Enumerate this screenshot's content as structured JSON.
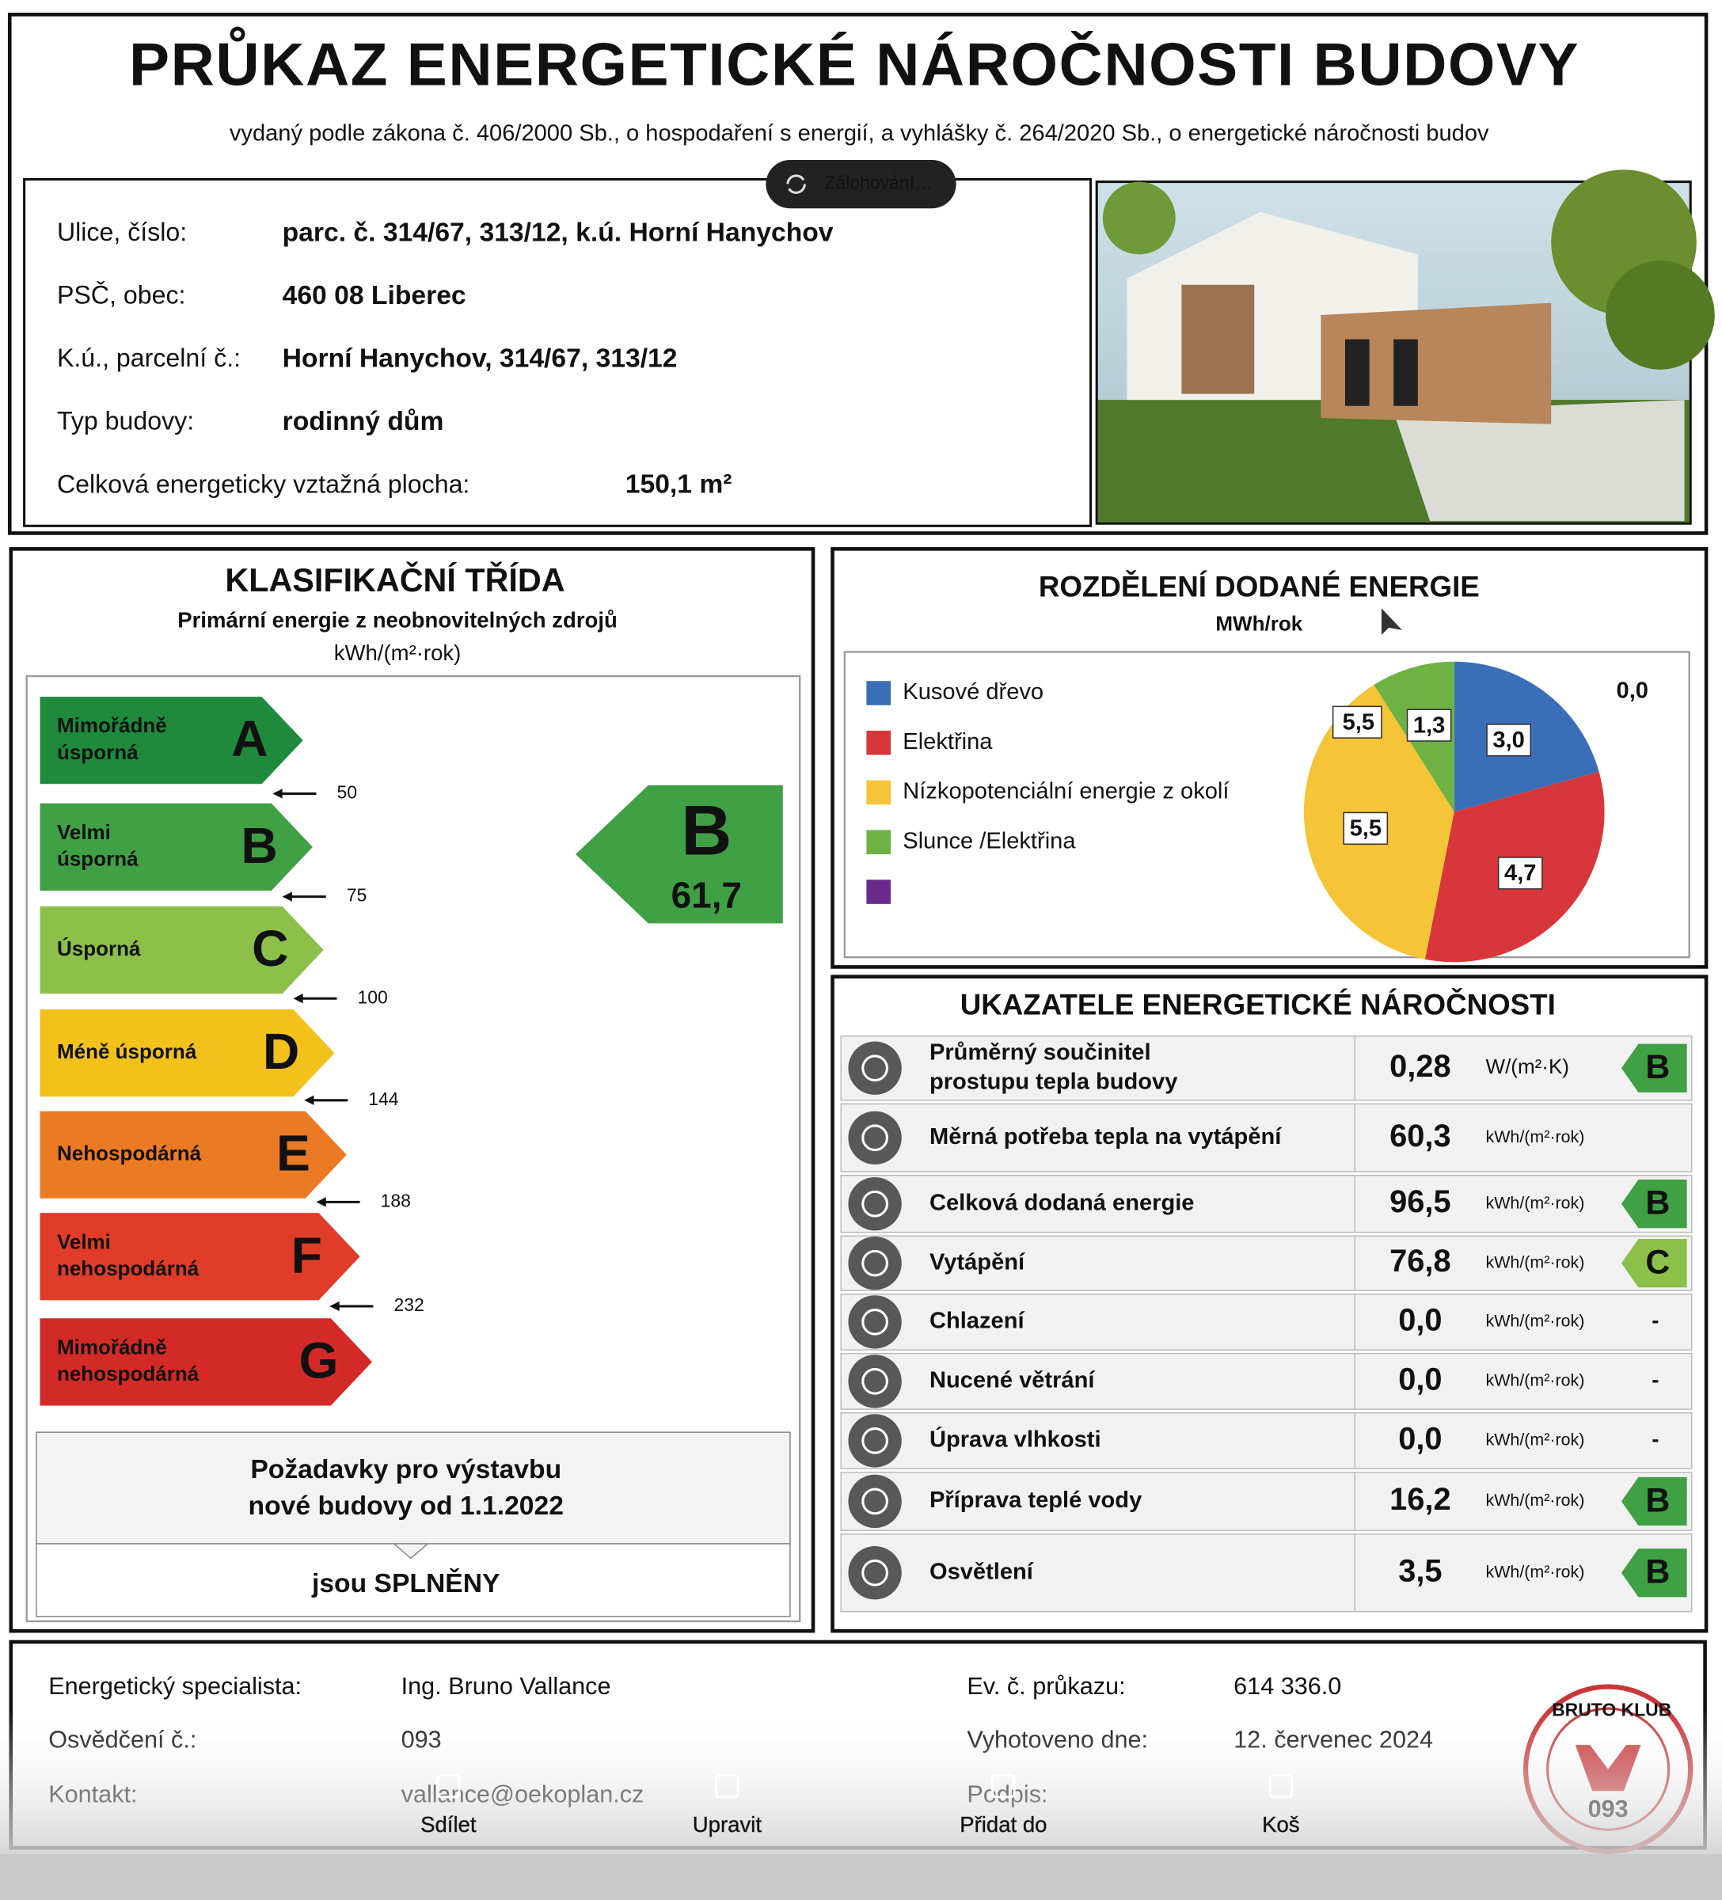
{
  "header": {
    "title": "PRŮKAZ ENERGETICKÉ NÁROČNOSTI BUDOVY",
    "subtitle": "vydaný podle zákona č. 406/2000 Sb., o hospodaření s energií, a vyhlášky č. 264/2020 Sb., o energetické náročnosti budov"
  },
  "sync_badge": "Zálohování…",
  "address": {
    "rows": [
      [
        "Ulice, číslo:",
        "parc. č. 314/67, 313/12, k.ú. Horní Hanychov"
      ],
      [
        "PSČ, obec:",
        "460 08 Liberec"
      ],
      [
        "K.ú., parcelní č.:",
        "Horní Hanychov, 314/67, 313/12"
      ],
      [
        "Typ budovy:",
        "rodinný dům"
      ],
      [
        "Celková energeticky vztažná plocha:",
        "150,1 m²"
      ]
    ]
  },
  "classification": {
    "title": "KLASIFIKAČNÍ TŘÍDA",
    "subtitle": "Primární energie z neobnovitelných zdrojů",
    "unit": "kWh/(m²·rok)",
    "classes": [
      {
        "name_lines": [
          "Mimořádně",
          "úsporná"
        ],
        "letter": "A",
        "color": "#1f8a3c"
      },
      {
        "name_lines": [
          "Velmi",
          "úsporná"
        ],
        "letter": "B",
        "color": "#3fa044"
      },
      {
        "name_lines": [
          "Úsporná"
        ],
        "letter": "C",
        "color": "#8cc04a"
      },
      {
        "name_lines": [
          "Méně úsporná"
        ],
        "letter": "D",
        "color": "#f2c11c"
      },
      {
        "name_lines": [
          "Nehospodárná"
        ],
        "letter": "E",
        "color": "#eb7a25"
      },
      {
        "name_lines": [
          "Velmi",
          "nehospodárná"
        ],
        "letter": "F",
        "color": "#e03c2a"
      },
      {
        "name_lines": [
          "Mimořádně",
          "nehospodárná"
        ],
        "letter": "G",
        "color": "#d42a27"
      }
    ],
    "thresholds": [
      "50",
      "75",
      "100",
      "144",
      "188",
      "232"
    ],
    "result": {
      "letter": "B",
      "value": "61,7"
    },
    "requirements": {
      "lines": [
        "Požadavky pro výstavbu",
        "nové budovy od 1.1.2022"
      ],
      "status": "jsou SPLNĚNY"
    }
  },
  "energy_split": {
    "title": "ROZDĚLENÍ DODANÉ ENERGIE",
    "unit": "MWh/rok",
    "chart": {
      "type": "pie",
      "categories": [
        "Kusové dřevo",
        "Elektřina",
        "Nízkopotenciální energie z okolí",
        "Slunce /Elektřina",
        null
      ],
      "values": [
        3.0,
        4.7,
        5.5,
        1.3,
        0.0
      ],
      "value_labels": [
        "3,0",
        "4,7",
        "5,5",
        "1,3",
        "0,0"
      ],
      "colors": [
        "#3a6fb8",
        "#d7363a",
        "#f5c437",
        "#6fb244",
        "#6a2a8c"
      ],
      "callout": "5,5"
    }
  },
  "indicators": {
    "title": "UKAZATELE ENERGETICKÉ NÁROČNOSTI",
    "rows": [
      {
        "label": [
          "Průměrný součinitel",
          "prostupu tepla budovy"
        ],
        "value": "0,28",
        "unit": "W/(m²·K)",
        "class": "B"
      },
      {
        "label": [
          "Měrná potřeba tepla na vytápění"
        ],
        "value": "60,3",
        "unit": "kWh/(m²·rok)"
      },
      {
        "label": [
          "Celková dodaná energie"
        ],
        "value": "96,5",
        "unit": "kWh/(m²·rok)",
        "class": "B"
      },
      {
        "label": [
          "Vytápění"
        ],
        "value": "76,8",
        "unit": "kWh/(m²·rok)",
        "class": "C"
      },
      {
        "label": [
          "Chlazení"
        ],
        "value": "0,0",
        "unit": "kWh/(m²·rok)",
        "class": "-"
      },
      {
        "label": [
          "Nucené větrání"
        ],
        "value": "0,0",
        "unit": "kWh/(m²·rok)",
        "class": "-"
      },
      {
        "label": [
          "Úprava vlhkosti"
        ],
        "value": "0,0",
        "unit": "kWh/(m²·rok)",
        "class": "-"
      },
      {
        "label": [
          "Příprava teplé vody"
        ],
        "value": "16,2",
        "unit": "kWh/(m²·rok)",
        "class": "B"
      },
      {
        "label": [
          "Osvětlení"
        ],
        "value": "3,5",
        "unit": "kWh/(m²·rok)",
        "class": "B"
      }
    ]
  },
  "footer": {
    "left": [
      [
        "Energetický specialista:",
        "Ing. Bruno Vallance"
      ],
      [
        "Osvědčení č.:",
        "093"
      ],
      [
        "Kontakt:",
        "vallance@oekoplan.cz"
      ]
    ],
    "right": [
      [
        "Ev. č. průkazu:",
        "614 336.0"
      ],
      [
        "Vyhotoveno dne:",
        "12. červenec 2024"
      ],
      [
        "Podpis:"
      ]
    ],
    "stamp": {
      "text": "BRUTO KLUB",
      "number": "093"
    }
  },
  "toolbar": [
    "Sdílet",
    "Upravit",
    "Přidat do",
    "Koš"
  ]
}
